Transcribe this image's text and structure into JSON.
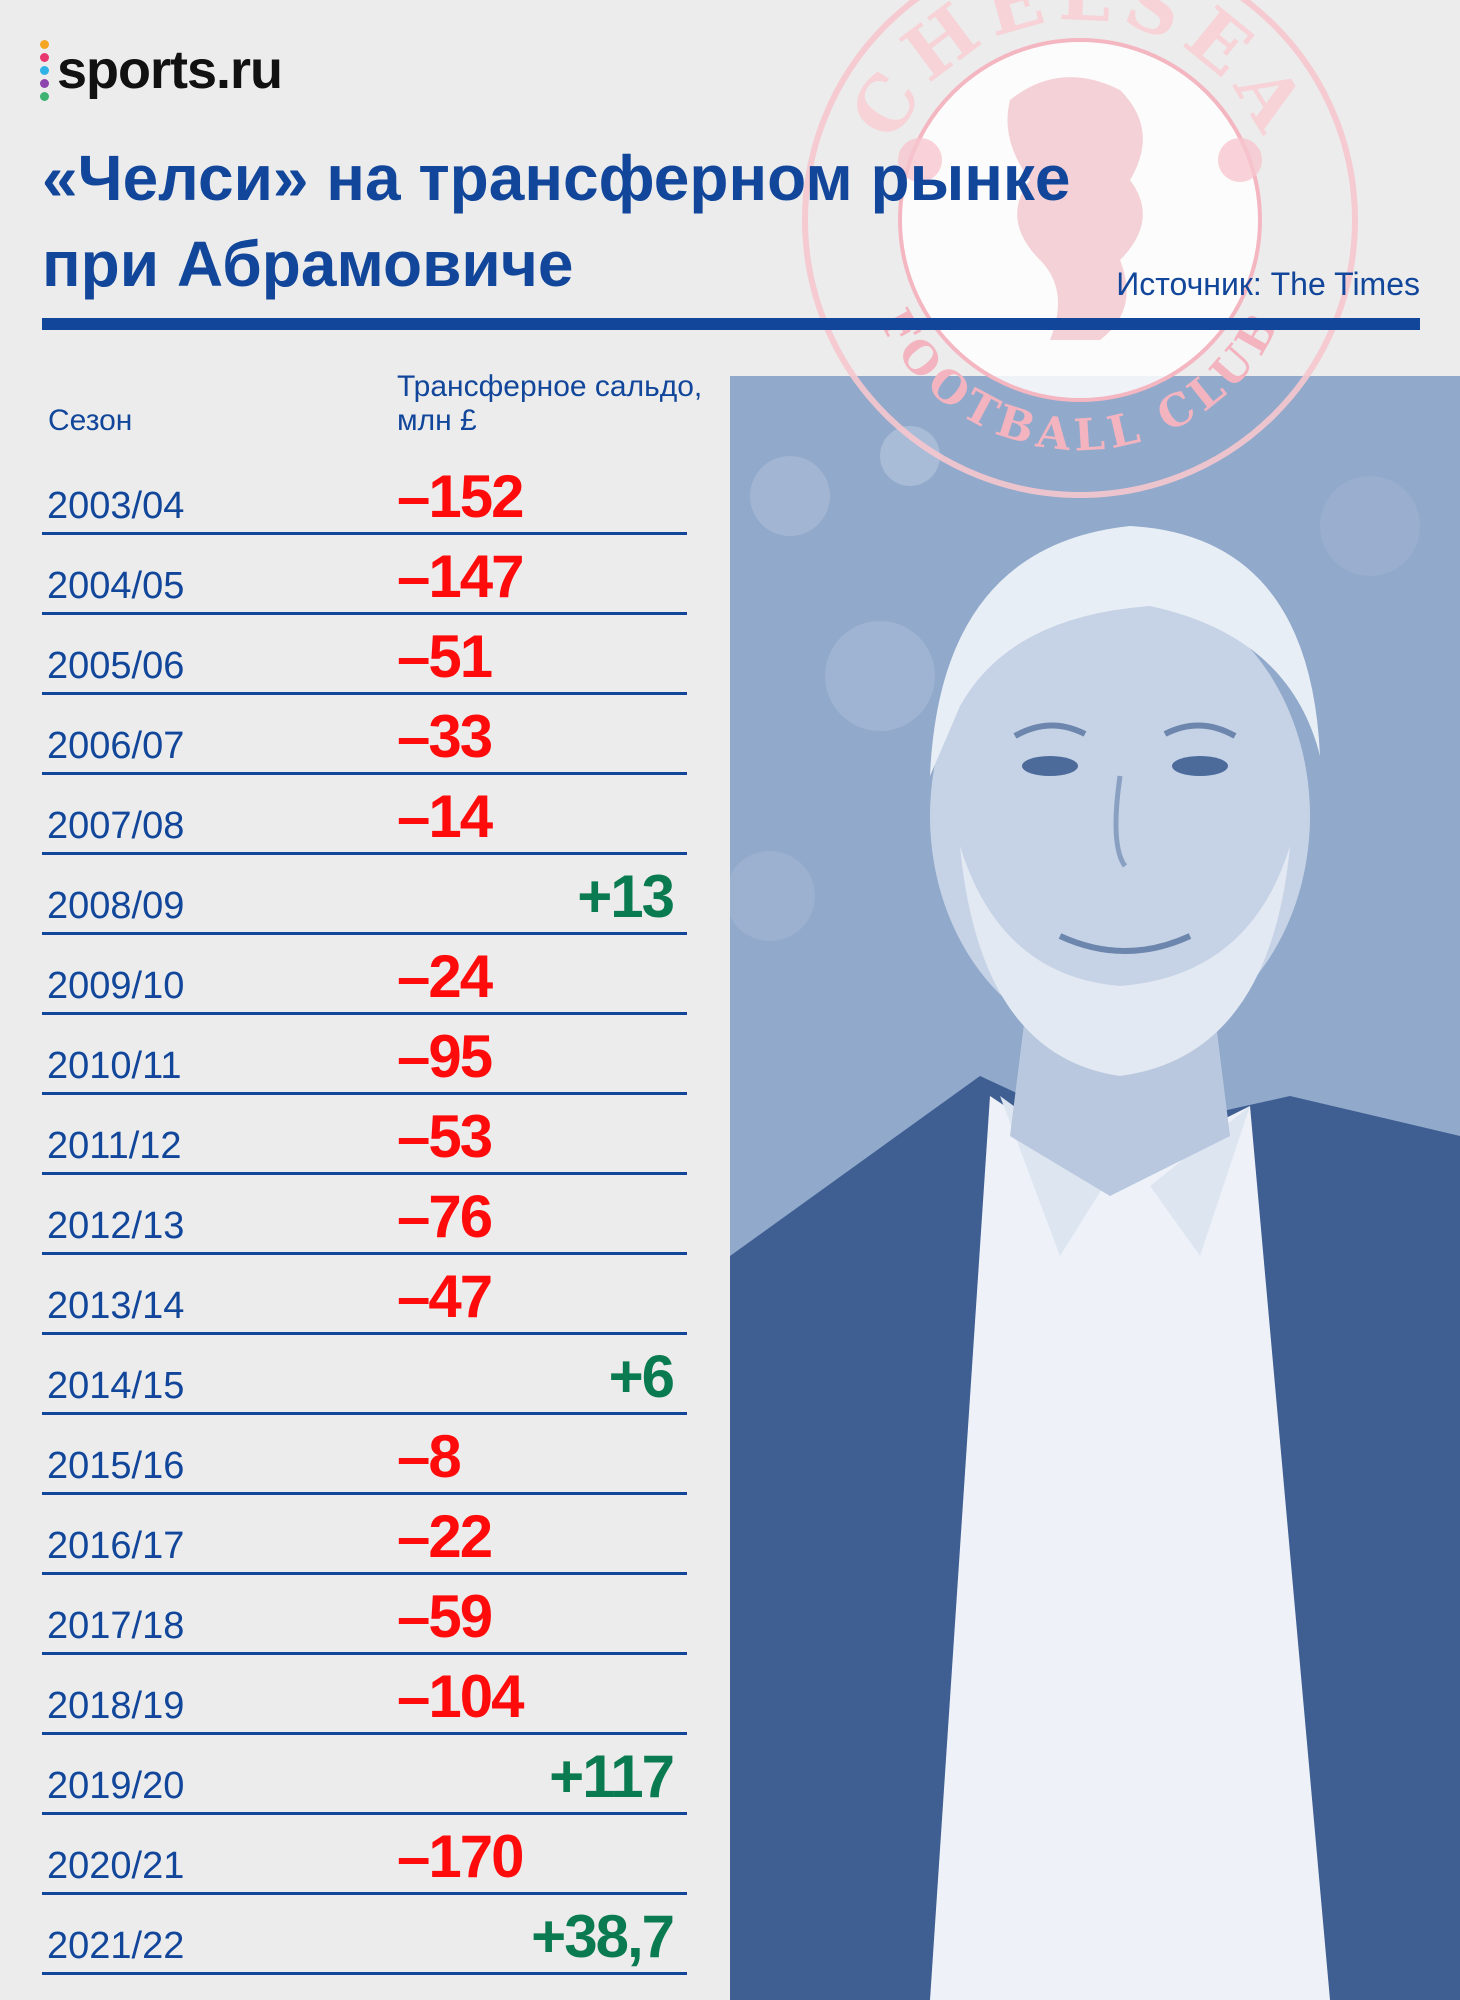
{
  "brand": {
    "name": "sports.ru",
    "dot_colors": [
      "#f5a623",
      "#e8366f",
      "#2fb2e6",
      "#8e44ad",
      "#3cb371"
    ]
  },
  "header": {
    "title_line1": "«Челси» на трансферном рынке",
    "title_line2": "при Абрамовиче",
    "source": "Источник: The Times"
  },
  "crest": {
    "top_text": "CHELSEA",
    "bottom_text": "FOOTBALL CLUB"
  },
  "colors": {
    "accent": "#11469a",
    "negative": "#ff0b0b",
    "positive": "#0a7a50",
    "background": "#ececec",
    "photo_tint": "#8fa7c9"
  },
  "chart_data": {
    "type": "table",
    "columns": [
      "Сезон",
      "Трансферное сальдо, млн £"
    ],
    "column_header_value_line1": "Трансферное сальдо,",
    "column_header_value_line2": "млн £",
    "rows": [
      {
        "season": "2003/04",
        "value": -152,
        "label": "–152"
      },
      {
        "season": "2004/05",
        "value": -147,
        "label": "–147"
      },
      {
        "season": "2005/06",
        "value": -51,
        "label": "–51"
      },
      {
        "season": "2006/07",
        "value": -33,
        "label": "–33"
      },
      {
        "season": "2007/08",
        "value": -14,
        "label": "–14"
      },
      {
        "season": "2008/09",
        "value": 13,
        "label": "+13"
      },
      {
        "season": "2009/10",
        "value": -24,
        "label": "–24"
      },
      {
        "season": "2010/11",
        "value": -95,
        "label": "–95"
      },
      {
        "season": "2011/12",
        "value": -53,
        "label": "–53"
      },
      {
        "season": "2012/13",
        "value": -76,
        "label": "–76"
      },
      {
        "season": "2013/14",
        "value": -47,
        "label": "–47"
      },
      {
        "season": "2014/15",
        "value": 6,
        "label": "+6"
      },
      {
        "season": "2015/16",
        "value": -8,
        "label": "–8"
      },
      {
        "season": "2016/17",
        "value": -22,
        "label": "–22"
      },
      {
        "season": "2017/18",
        "value": -59,
        "label": "–59"
      },
      {
        "season": "2018/19",
        "value": -104,
        "label": "–104"
      },
      {
        "season": "2019/20",
        "value": 117,
        "label": "+117"
      },
      {
        "season": "2020/21",
        "value": -170,
        "label": "–170"
      },
      {
        "season": "2021/22",
        "value": 38.7,
        "label": "+38,7"
      }
    ]
  }
}
